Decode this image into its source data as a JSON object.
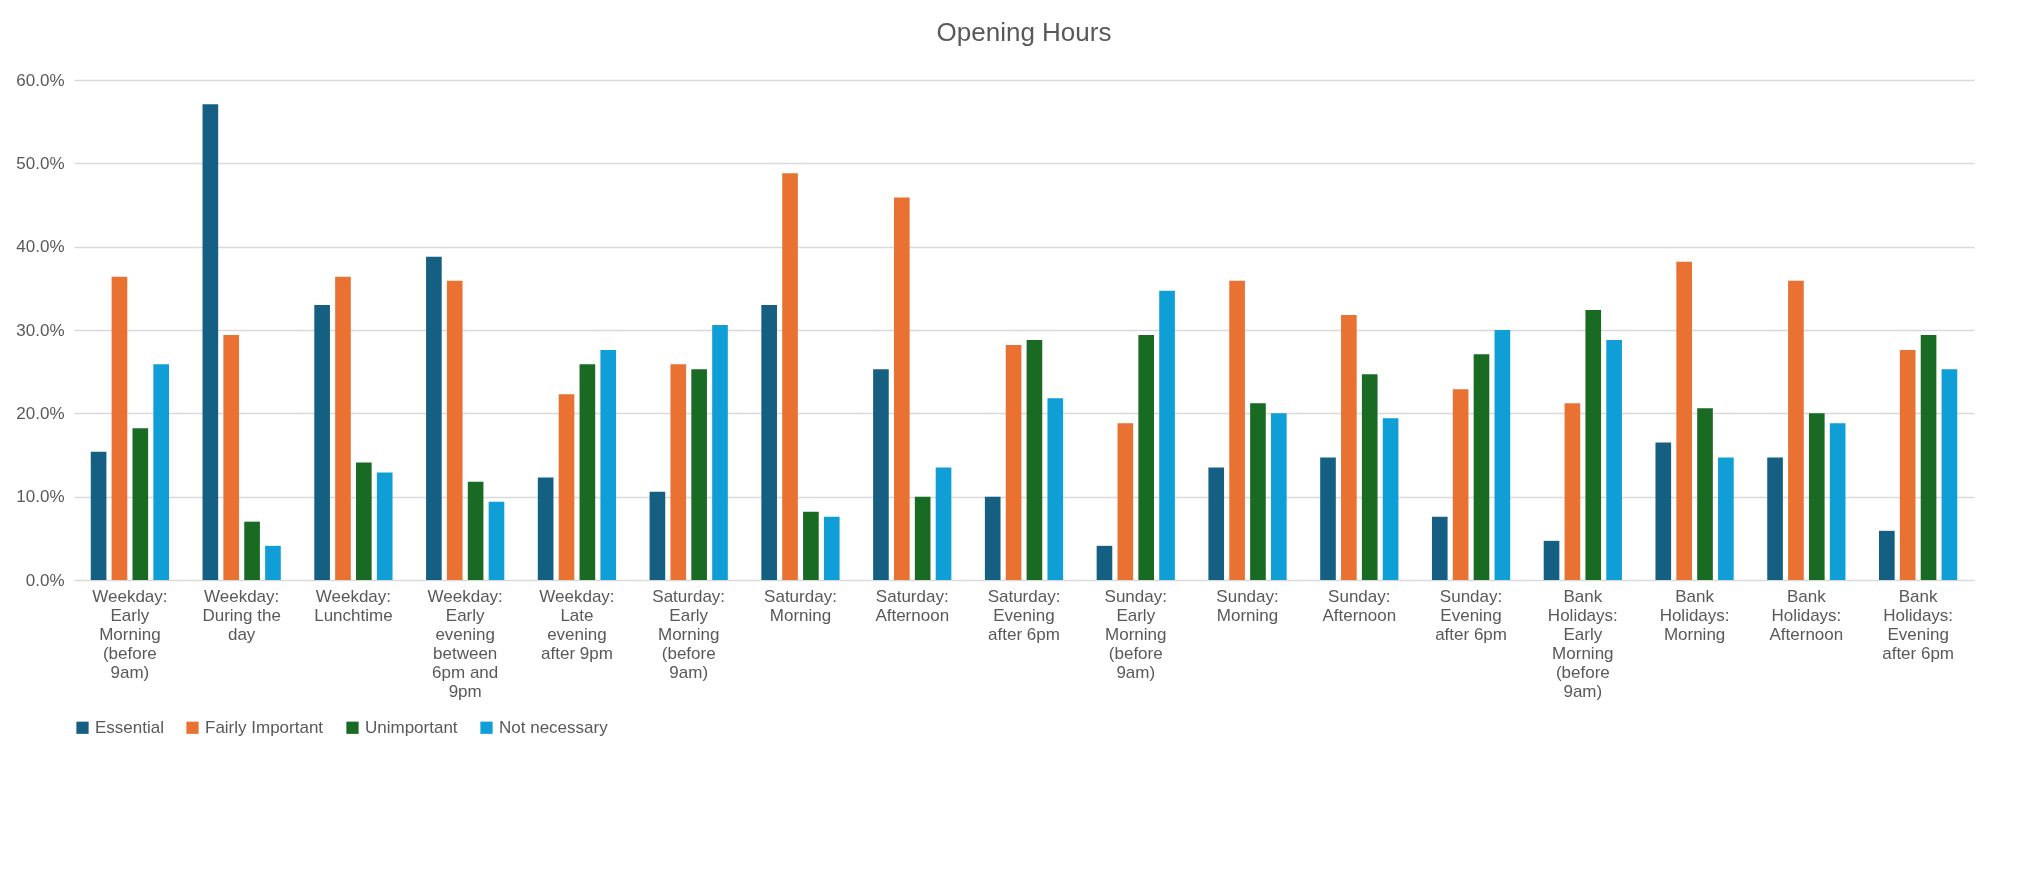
{
  "chart_data": {
    "type": "bar",
    "title": "Opening Hours",
    "categories": [
      "Weekday: Early Morning (before 9am)",
      "Weekday: During the day",
      "Weekday: Lunchtime",
      "Weekday: Early evening between 6pm and 9pm",
      "Weekday: Late evening after 9pm",
      "Saturday: Early Morning (before 9am)",
      "Saturday: Morning",
      "Saturday: Afternoon",
      "Saturday: Evening after 6pm",
      "Sunday: Early Morning (before 9am)",
      "Sunday: Morning",
      "Sunday: Afternoon",
      "Sunday: Evening after 6pm",
      "Bank Holidays: Early Morning (before 9am)",
      "Bank Holidays: Morning",
      "Bank Holidays: Afternoon",
      "Bank Holidays: Evening after 6pm"
    ],
    "series": [
      {
        "name": "Essential",
        "color": "#156082",
        "values": [
          15.4,
          57.1,
          33.0,
          38.8,
          12.3,
          10.6,
          33.0,
          25.3,
          10.0,
          4.1,
          13.5,
          14.7,
          7.6,
          4.7,
          16.5,
          14.7,
          5.9
        ]
      },
      {
        "name": "Fairly Important",
        "color": "#e97132",
        "values": [
          36.4,
          29.4,
          36.4,
          35.9,
          22.3,
          25.9,
          48.8,
          45.9,
          28.2,
          18.8,
          35.9,
          31.8,
          22.9,
          21.2,
          38.2,
          35.9,
          27.6
        ]
      },
      {
        "name": "Unimportant",
        "color": "#196b24",
        "values": [
          18.2,
          7.0,
          14.1,
          11.8,
          25.9,
          25.3,
          8.2,
          10.0,
          28.8,
          29.4,
          21.2,
          24.7,
          27.1,
          32.4,
          20.6,
          20.0,
          29.4
        ]
      },
      {
        "name": "Not necessary",
        "color": "#0f9ed5",
        "values": [
          25.9,
          4.1,
          12.9,
          9.4,
          27.6,
          30.6,
          7.6,
          13.5,
          21.8,
          34.7,
          20.0,
          19.4,
          30.0,
          28.8,
          14.7,
          18.8,
          25.3
        ]
      }
    ],
    "ylim": [
      0,
      60
    ],
    "yticks": [
      {
        "value": 0,
        "label": "0.0%"
      },
      {
        "value": 10,
        "label": "10.0%"
      },
      {
        "value": 20,
        "label": "20.0%"
      },
      {
        "value": 30,
        "label": "30.0%"
      },
      {
        "value": 40,
        "label": "40.0%"
      },
      {
        "value": 50,
        "label": "50.0%"
      },
      {
        "value": 60,
        "label": "60.0%"
      }
    ],
    "grid": "y",
    "legend": "bottom"
  }
}
